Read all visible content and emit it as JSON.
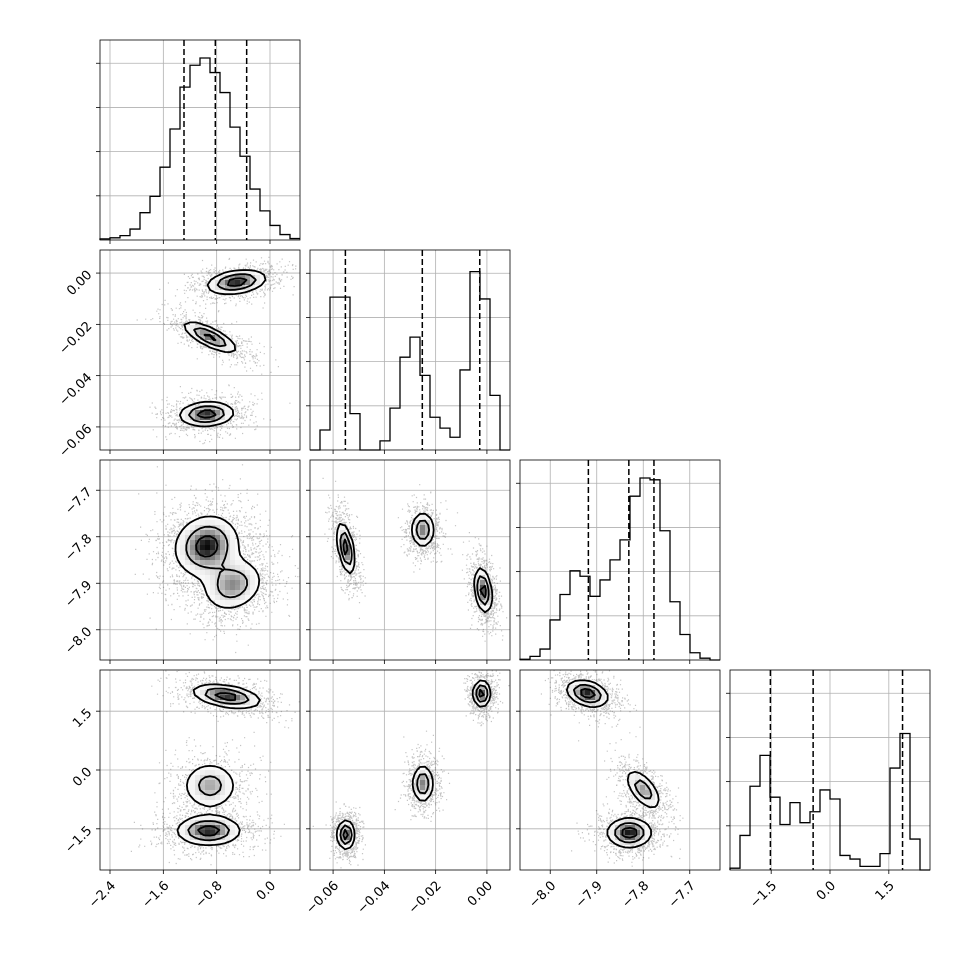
{
  "chart_data": {
    "type": "corner",
    "parameters": 4,
    "grid": true,
    "tick_labels": {
      "p1": [
        "−2.4",
        "−1.6",
        "−0.8",
        "0.0"
      ],
      "p2": [
        "−0.06",
        "−0.04",
        "−0.02",
        "0.00"
      ],
      "p3": [
        "−8.0",
        "−7.9",
        "−7.8",
        "−7.7"
      ],
      "p4": [
        "−1.5",
        "0.0",
        "1.5"
      ]
    },
    "axis_ranges": {
      "p1": [
        -2.55,
        0.45
      ],
      "p2": [
        -0.069,
        0.009
      ],
      "p3": [
        -8.065,
        -7.635
      ],
      "p4": [
        -2.55,
        2.55
      ]
    },
    "ticks": {
      "p1": [
        -2.4,
        -1.6,
        -0.8,
        0.0
      ],
      "p2": [
        -0.06,
        -0.04,
        -0.02,
        0.0
      ],
      "p3": [
        -8.0,
        -7.9,
        -7.8,
        -7.7
      ],
      "p4": [
        -1.5,
        0.0,
        1.5
      ]
    },
    "quantiles": {
      "p1": [
        -1.29,
        -0.82,
        -0.35
      ],
      "p2": [
        -0.0552,
        -0.0252,
        -0.0028
      ],
      "p3": [
        -7.918,
        -7.831,
        -7.777
      ],
      "p4": [
        -1.52,
        -0.43,
        1.85
      ]
    },
    "marginals": {
      "p1": [
        0.006,
        0.012,
        0.024,
        0.06,
        0.15,
        0.24,
        0.4,
        0.61,
        0.84,
        0.96,
        1.0,
        0.92,
        0.81,
        0.62,
        0.46,
        0.28,
        0.16,
        0.08,
        0.03,
        0.008
      ],
      "p2": [
        0.0,
        0.11,
        0.84,
        0.84,
        0.2,
        0.0,
        0.0,
        0.05,
        0.23,
        0.51,
        0.62,
        0.41,
        0.18,
        0.12,
        0.07,
        0.44,
        0.98,
        0.83,
        0.3,
        0.0
      ],
      "p3": [
        0.004,
        0.02,
        0.06,
        0.22,
        0.36,
        0.49,
        0.46,
        0.35,
        0.44,
        0.55,
        0.66,
        0.9,
        1.0,
        0.99,
        0.71,
        0.32,
        0.14,
        0.04,
        0.01,
        0.0
      ],
      "p4": [
        0.01,
        0.19,
        0.46,
        0.63,
        0.4,
        0.25,
        0.37,
        0.26,
        0.32,
        0.44,
        0.39,
        0.08,
        0.06,
        0.02,
        0.02,
        0.09,
        0.56,
        0.75,
        0.17,
        0.0
      ]
    },
    "modes": {
      "p1_p2": [
        {
          "x": -0.5,
          "y": -0.0035,
          "sx": 0.26,
          "sy": 0.0028,
          "r": 0.3,
          "w": 1.0
        },
        {
          "x": -0.9,
          "y": -0.025,
          "sx": 0.24,
          "sy": 0.0036,
          "r": -0.75,
          "w": 0.9
        },
        {
          "x": -0.95,
          "y": -0.055,
          "sx": 0.24,
          "sy": 0.0028,
          "r": 0.1,
          "w": 1.0
        }
      ],
      "p1_p3": [
        {
          "x": -0.95,
          "y": -7.82,
          "sx": 0.28,
          "sy": 0.038,
          "r": 0.1,
          "w": 1.0
        },
        {
          "x": -0.55,
          "y": -7.905,
          "sx": 0.26,
          "sy": 0.032,
          "r": 0.2,
          "w": 0.75
        }
      ],
      "p1_p4": [
        {
          "x": -0.65,
          "y": 1.88,
          "sx": 0.3,
          "sy": 0.18,
          "r": -0.4,
          "w": 1.0
        },
        {
          "x": -0.9,
          "y": -0.4,
          "sx": 0.24,
          "sy": 0.35,
          "r": 0.0,
          "w": 0.7
        },
        {
          "x": -0.92,
          "y": -1.55,
          "sx": 0.28,
          "sy": 0.22,
          "r": 0.0,
          "w": 1.0
        }
      ],
      "p2_p3": [
        {
          "x": -0.055,
          "y": -7.825,
          "sx": 0.002,
          "sy": 0.032,
          "r": -0.5,
          "w": 1.0
        },
        {
          "x": -0.025,
          "y": -7.785,
          "sx": 0.0026,
          "sy": 0.022,
          "r": 0.0,
          "w": 0.85
        },
        {
          "x": -0.0015,
          "y": -7.915,
          "sx": 0.002,
          "sy": 0.028,
          "r": -0.3,
          "w": 1.0
        }
      ],
      "p2_p4": [
        {
          "x": -0.055,
          "y": -1.65,
          "sx": 0.002,
          "sy": 0.22,
          "r": 0.0,
          "w": 1.0
        },
        {
          "x": -0.025,
          "y": -0.35,
          "sx": 0.0024,
          "sy": 0.28,
          "r": 0.0,
          "w": 0.85
        },
        {
          "x": -0.002,
          "y": 1.95,
          "sx": 0.002,
          "sy": 0.2,
          "r": 0.0,
          "w": 1.0
        }
      ],
      "p3_p4": [
        {
          "x": -7.92,
          "y": 1.95,
          "sx": 0.026,
          "sy": 0.2,
          "r": -0.3,
          "w": 1.0
        },
        {
          "x": -7.8,
          "y": -0.5,
          "sx": 0.022,
          "sy": 0.3,
          "r": -0.6,
          "w": 0.75
        },
        {
          "x": -7.83,
          "y": -1.6,
          "sx": 0.028,
          "sy": 0.22,
          "r": 0.0,
          "w": 1.0
        }
      ]
    },
    "contour_levels": [
      0.25,
      0.55,
      0.85
    ]
  }
}
